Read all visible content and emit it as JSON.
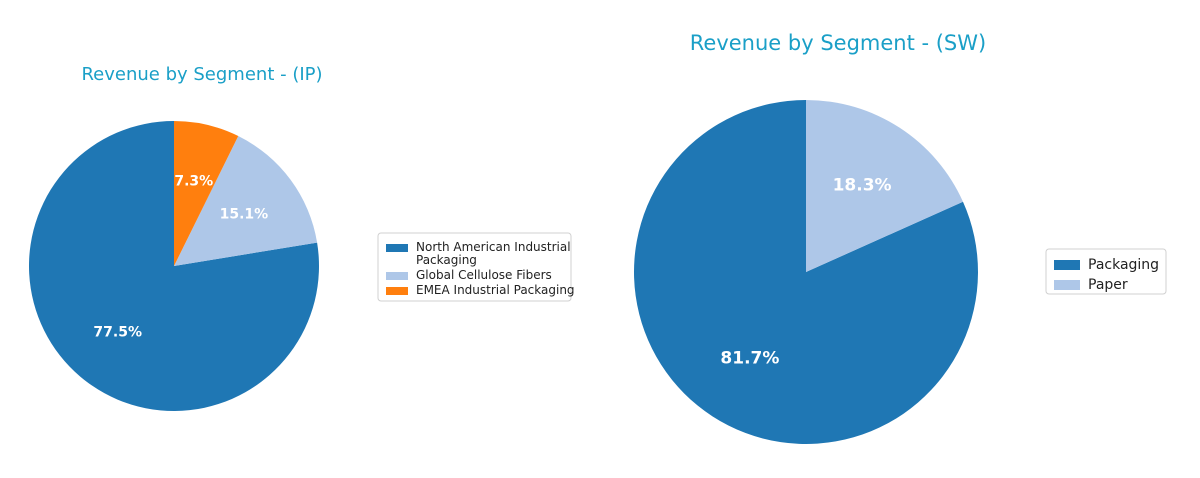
{
  "chart_data": [
    {
      "type": "pie",
      "title": "Revenue by Segment - (IP)",
      "categories": [
        "North American Industrial Packaging",
        "Global Cellulose Fibers",
        "EMEA Industrial Packaging"
      ],
      "legend_labels": [
        [
          "North American Industrial",
          "Packaging"
        ],
        [
          "Global Cellulose Fibers"
        ],
        [
          "EMEA Industrial Packaging"
        ]
      ],
      "values": [
        77.5,
        15.1,
        7.3
      ],
      "labels": [
        "77.5%",
        "15.1%",
        "7.3%"
      ],
      "colors": [
        "#1f77b4",
        "#aec7e8",
        "#ff7f0e"
      ],
      "start_angle": 90,
      "direction": "counterclockwise",
      "legend_position": "right"
    },
    {
      "type": "pie",
      "title": "Revenue by Segment - (SW)",
      "categories": [
        "Packaging",
        "Paper"
      ],
      "legend_labels": [
        [
          "Packaging"
        ],
        [
          "Paper"
        ]
      ],
      "values": [
        81.7,
        18.3
      ],
      "labels": [
        "81.7%",
        "18.3%"
      ],
      "colors": [
        "#1f77b4",
        "#aec7e8"
      ],
      "start_angle": 90,
      "direction": "counterclockwise",
      "legend_position": "right"
    }
  ]
}
